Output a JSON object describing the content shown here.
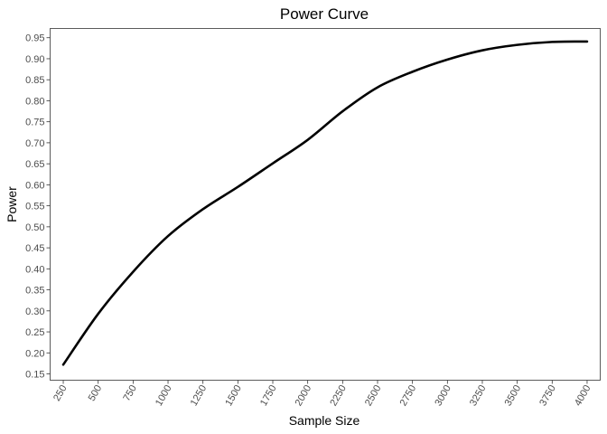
{
  "chart_data": {
    "type": "line",
    "title": "Power Curve",
    "xlabel": "Sample Size",
    "ylabel": "Power",
    "xlim": [
      156,
      4094
    ],
    "ylim": [
      0.135,
      0.972
    ],
    "x_ticks": [
      250,
      500,
      750,
      1000,
      1250,
      1500,
      1750,
      2000,
      2250,
      2500,
      2750,
      3000,
      3250,
      3500,
      3750,
      4000
    ],
    "y_ticks": [
      0.15,
      0.2,
      0.25,
      0.3,
      0.35,
      0.4,
      0.45,
      0.5,
      0.55,
      0.6,
      0.65,
      0.7,
      0.75,
      0.8,
      0.85,
      0.9,
      0.95
    ],
    "grid": false,
    "series": [
      {
        "color": "#000000",
        "x": [
          250,
          500,
          750,
          1000,
          1250,
          1500,
          1750,
          2000,
          2250,
          2500,
          2750,
          3000,
          3250,
          3500,
          3750,
          4000
        ],
        "y": [
          0.172,
          0.293,
          0.393,
          0.478,
          0.542,
          0.595,
          0.651,
          0.707,
          0.775,
          0.832,
          0.869,
          0.898,
          0.92,
          0.933,
          0.94,
          0.941
        ]
      }
    ]
  }
}
